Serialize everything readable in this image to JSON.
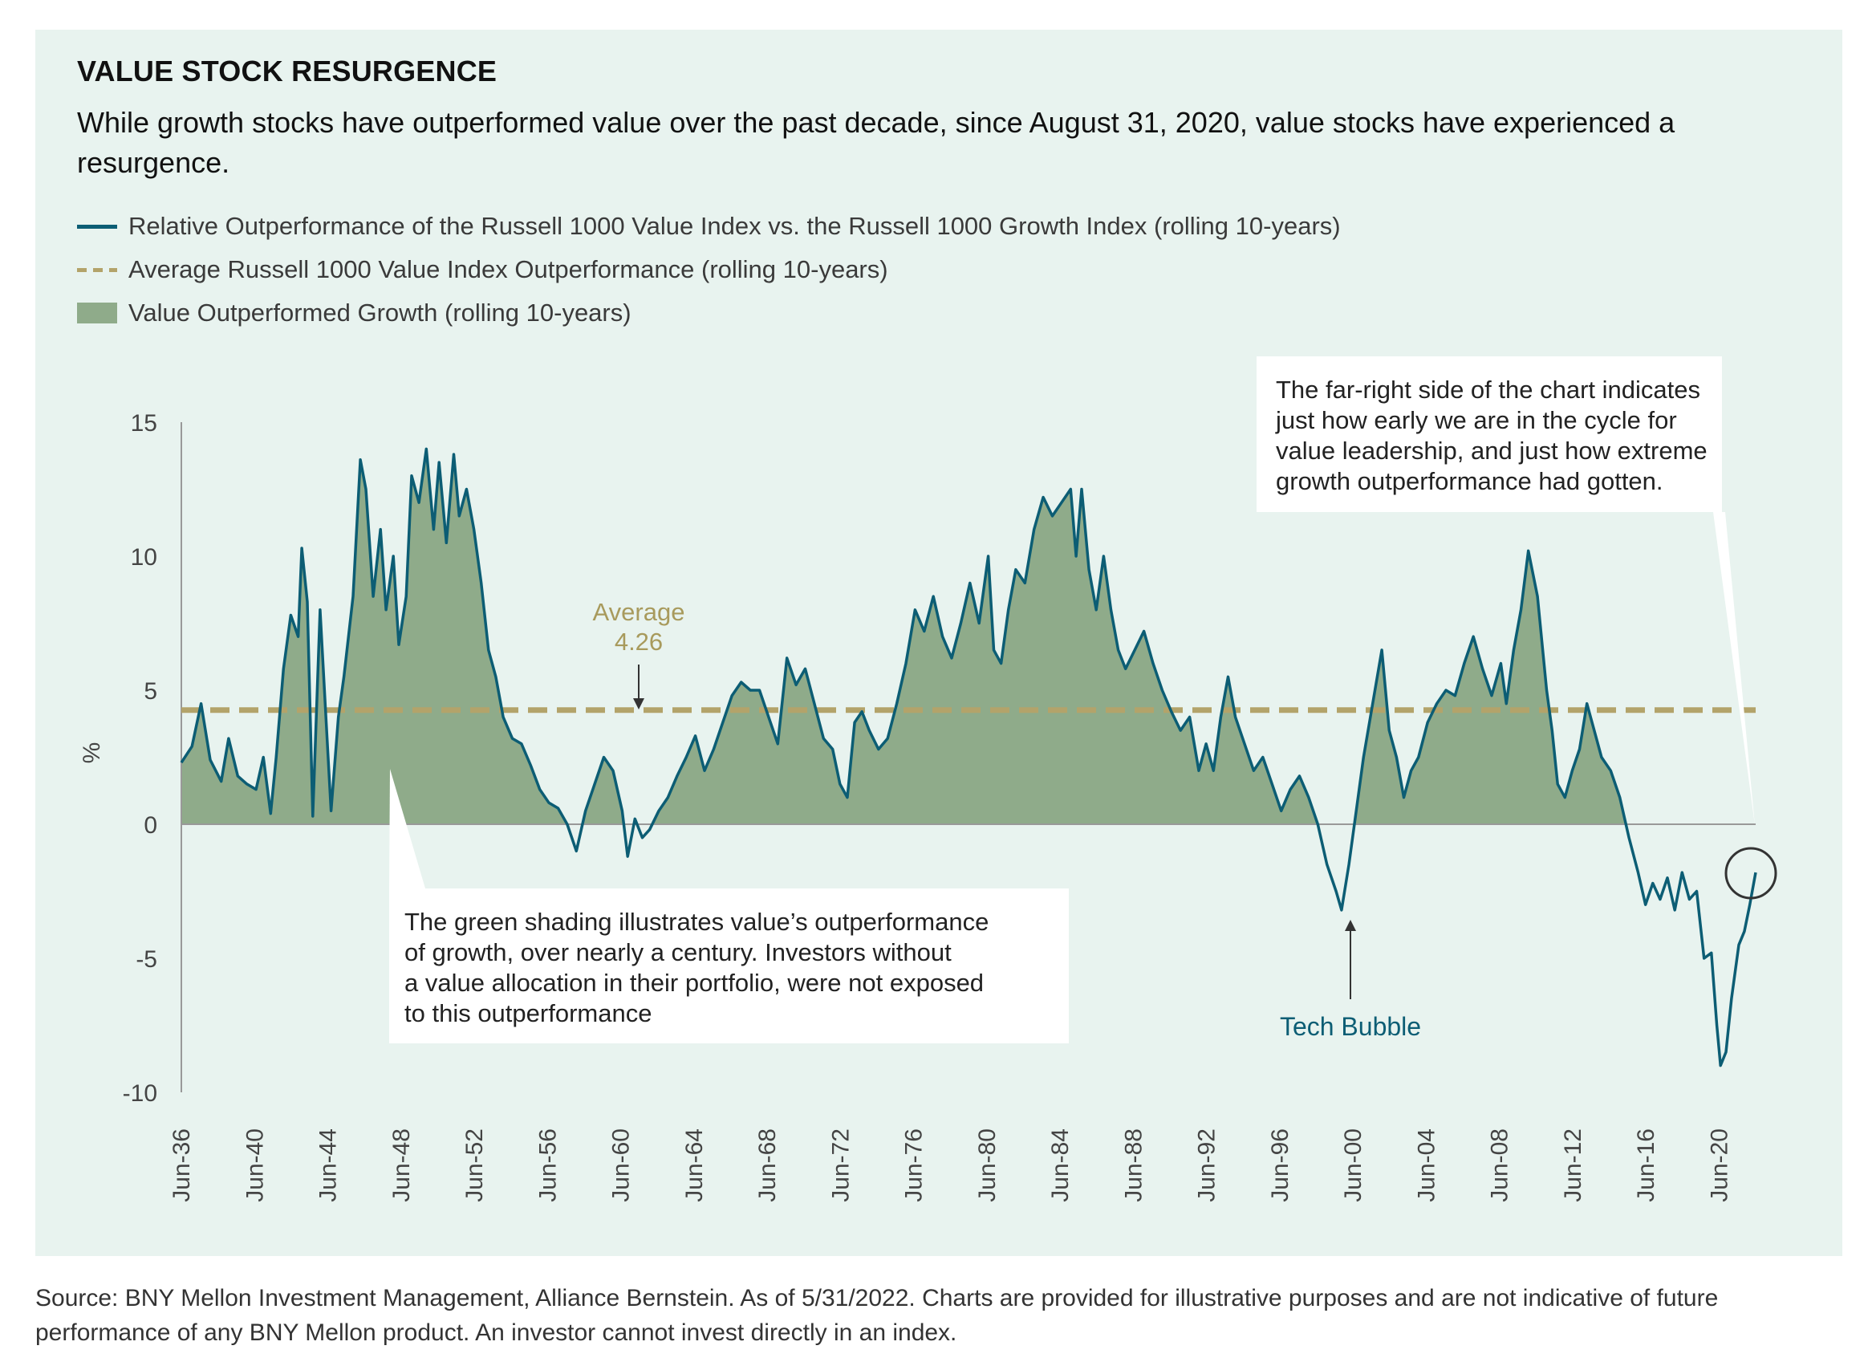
{
  "title": "VALUE STOCK RESURGENCE",
  "subtitle": "While growth stocks have outperformed value over the past decade, since August 31, 2020, value stocks have experienced a resurgence.",
  "legend": {
    "line": "Relative Outperformance of the Russell 1000 Value Index vs. the Russell 1000 Growth Index (rolling 10-years)",
    "dashed": "Average Russell 1000 Value Index Outperformance (rolling 10-years)",
    "area": "Value Outperformed Growth (rolling 10-years)"
  },
  "annotations": {
    "average_label": "Average",
    "average_value": "4.26",
    "top_right_box": [
      "The far-right side of the chart indicates",
      "just how early we are in the cycle for",
      "value leadership, and just how extreme",
      "growth outperformance had gotten."
    ],
    "bottom_box": [
      "The green shading illustrates value’s outperformance",
      "of growth, over nearly a century. Investors without",
      "a value allocation in their portfolio, were not exposed",
      "to this outperformance"
    ],
    "tech_bubble": "Tech Bubble"
  },
  "source": "Source: BNY Mellon Investment Management, Alliance Bernstein. As of 5/31/2022. Charts are provided for illustrative purposes and are not indicative of future performance of any BNY Mellon product. An investor cannot invest directly in an index.",
  "colors": {
    "panel": "#e8f3ef",
    "line": "#0c5d74",
    "area": "#8fab8a",
    "average": "#b3a36a",
    "axis": "#999999"
  },
  "chart_data": {
    "type": "line",
    "ylabel": "%",
    "ylim": [
      -10,
      15
    ],
    "yticks": [
      15,
      10,
      5,
      0,
      -5,
      -10
    ],
    "xlim": [
      1936.42,
      2022.42
    ],
    "xticks": [
      {
        "year": 1936.42,
        "label": "Jun-36"
      },
      {
        "year": 1940.42,
        "label": "Jun-40"
      },
      {
        "year": 1944.42,
        "label": "Jun-44"
      },
      {
        "year": 1948.42,
        "label": "Jun-48"
      },
      {
        "year": 1952.42,
        "label": "Jun-52"
      },
      {
        "year": 1956.42,
        "label": "Jun-56"
      },
      {
        "year": 1960.42,
        "label": "Jun-60"
      },
      {
        "year": 1964.42,
        "label": "Jun-64"
      },
      {
        "year": 1968.42,
        "label": "Jun-68"
      },
      {
        "year": 1972.42,
        "label": "Jun-72"
      },
      {
        "year": 1976.42,
        "label": "Jun-76"
      },
      {
        "year": 1980.42,
        "label": "Jun-80"
      },
      {
        "year": 1984.42,
        "label": "Jun-84"
      },
      {
        "year": 1988.42,
        "label": "Jun-88"
      },
      {
        "year": 1992.42,
        "label": "Jun-92"
      },
      {
        "year": 1996.42,
        "label": "Jun-96"
      },
      {
        "year": 2000.42,
        "label": "Jun-00"
      },
      {
        "year": 2004.42,
        "label": "Jun-04"
      },
      {
        "year": 2008.42,
        "label": "Jun-08"
      },
      {
        "year": 2012.42,
        "label": "Jun-12"
      },
      {
        "year": 2016.42,
        "label": "Jun-16"
      },
      {
        "year": 2020.42,
        "label": "Jun-20"
      }
    ],
    "average": 4.26,
    "series": [
      {
        "name": "Relative Outperformance of the Russell 1000 Value Index vs. the Russell 1000 Growth Index (rolling 10-years)",
        "points": [
          [
            1936.42,
            2.3
          ],
          [
            1937.0,
            2.9
          ],
          [
            1937.5,
            4.5
          ],
          [
            1938.0,
            2.4
          ],
          [
            1938.6,
            1.6
          ],
          [
            1939.0,
            3.2
          ],
          [
            1939.5,
            1.8
          ],
          [
            1940.0,
            1.5
          ],
          [
            1940.5,
            1.3
          ],
          [
            1940.9,
            2.5
          ],
          [
            1941.3,
            0.4
          ],
          [
            1941.6,
            2.5
          ],
          [
            1942.0,
            5.8
          ],
          [
            1942.4,
            7.8
          ],
          [
            1942.8,
            7.0
          ],
          [
            1943.0,
            10.3
          ],
          [
            1943.3,
            8.3
          ],
          [
            1943.6,
            0.3
          ],
          [
            1944.0,
            8.0
          ],
          [
            1944.3,
            4.2
          ],
          [
            1944.6,
            0.5
          ],
          [
            1945.0,
            4.0
          ],
          [
            1945.3,
            5.5
          ],
          [
            1945.8,
            8.5
          ],
          [
            1946.2,
            13.6
          ],
          [
            1946.5,
            12.5
          ],
          [
            1946.9,
            8.5
          ],
          [
            1947.3,
            11.0
          ],
          [
            1947.6,
            8.0
          ],
          [
            1948.0,
            10.0
          ],
          [
            1948.3,
            6.7
          ],
          [
            1948.7,
            8.5
          ],
          [
            1949.0,
            13.0
          ],
          [
            1949.4,
            12.0
          ],
          [
            1949.8,
            14.0
          ],
          [
            1950.2,
            11.0
          ],
          [
            1950.5,
            13.5
          ],
          [
            1950.9,
            10.5
          ],
          [
            1951.3,
            13.8
          ],
          [
            1951.6,
            11.5
          ],
          [
            1952.0,
            12.5
          ],
          [
            1952.4,
            11.0
          ],
          [
            1952.8,
            9.0
          ],
          [
            1953.2,
            6.5
          ],
          [
            1953.6,
            5.5
          ],
          [
            1954.0,
            4.0
          ],
          [
            1954.5,
            3.2
          ],
          [
            1955.0,
            3.0
          ],
          [
            1955.5,
            2.2
          ],
          [
            1956.0,
            1.3
          ],
          [
            1956.5,
            0.8
          ],
          [
            1957.0,
            0.6
          ],
          [
            1957.5,
            0.0
          ],
          [
            1958.0,
            -1.0
          ],
          [
            1958.5,
            0.5
          ],
          [
            1959.0,
            1.5
          ],
          [
            1959.5,
            2.5
          ],
          [
            1960.0,
            2.0
          ],
          [
            1960.5,
            0.5
          ],
          [
            1960.8,
            -1.2
          ],
          [
            1961.2,
            0.2
          ],
          [
            1961.6,
            -0.5
          ],
          [
            1962.0,
            -0.2
          ],
          [
            1962.5,
            0.5
          ],
          [
            1963.0,
            1.0
          ],
          [
            1963.5,
            1.8
          ],
          [
            1964.0,
            2.5
          ],
          [
            1964.5,
            3.3
          ],
          [
            1965.0,
            2.0
          ],
          [
            1965.5,
            2.8
          ],
          [
            1966.0,
            3.8
          ],
          [
            1966.5,
            4.8
          ],
          [
            1967.0,
            5.3
          ],
          [
            1967.5,
            5.0
          ],
          [
            1968.0,
            5.0
          ],
          [
            1968.5,
            4.0
          ],
          [
            1969.0,
            3.0
          ],
          [
            1969.5,
            6.2
          ],
          [
            1970.0,
            5.2
          ],
          [
            1970.5,
            5.8
          ],
          [
            1971.0,
            4.5
          ],
          [
            1971.5,
            3.2
          ],
          [
            1972.0,
            2.8
          ],
          [
            1972.4,
            1.5
          ],
          [
            1972.8,
            1.0
          ],
          [
            1973.2,
            3.8
          ],
          [
            1973.6,
            4.2
          ],
          [
            1974.0,
            3.5
          ],
          [
            1974.5,
            2.8
          ],
          [
            1975.0,
            3.2
          ],
          [
            1975.5,
            4.5
          ],
          [
            1976.0,
            6.0
          ],
          [
            1976.5,
            8.0
          ],
          [
            1977.0,
            7.2
          ],
          [
            1977.5,
            8.5
          ],
          [
            1978.0,
            7.0
          ],
          [
            1978.5,
            6.2
          ],
          [
            1979.0,
            7.5
          ],
          [
            1979.5,
            9.0
          ],
          [
            1980.0,
            7.5
          ],
          [
            1980.5,
            10.0
          ],
          [
            1980.8,
            6.5
          ],
          [
            1981.2,
            6.0
          ],
          [
            1981.6,
            8.0
          ],
          [
            1982.0,
            9.5
          ],
          [
            1982.5,
            9.0
          ],
          [
            1983.0,
            11.0
          ],
          [
            1983.5,
            12.2
          ],
          [
            1984.0,
            11.5
          ],
          [
            1984.5,
            12.0
          ],
          [
            1985.0,
            12.5
          ],
          [
            1985.3,
            10.0
          ],
          [
            1985.6,
            12.5
          ],
          [
            1986.0,
            9.5
          ],
          [
            1986.4,
            8.0
          ],
          [
            1986.8,
            10.0
          ],
          [
            1987.2,
            8.0
          ],
          [
            1987.6,
            6.5
          ],
          [
            1988.0,
            5.8
          ],
          [
            1988.5,
            6.5
          ],
          [
            1989.0,
            7.2
          ],
          [
            1989.5,
            6.0
          ],
          [
            1990.0,
            5.0
          ],
          [
            1990.5,
            4.2
          ],
          [
            1991.0,
            3.5
          ],
          [
            1991.5,
            4.0
          ],
          [
            1992.0,
            2.0
          ],
          [
            1992.4,
            3.0
          ],
          [
            1992.8,
            2.0
          ],
          [
            1993.2,
            4.0
          ],
          [
            1993.6,
            5.5
          ],
          [
            1994.0,
            4.0
          ],
          [
            1994.5,
            3.0
          ],
          [
            1995.0,
            2.0
          ],
          [
            1995.5,
            2.5
          ],
          [
            1996.0,
            1.5
          ],
          [
            1996.5,
            0.5
          ],
          [
            1997.0,
            1.3
          ],
          [
            1997.5,
            1.8
          ],
          [
            1998.0,
            1.0
          ],
          [
            1998.5,
            0.0
          ],
          [
            1999.0,
            -1.5
          ],
          [
            1999.5,
            -2.5
          ],
          [
            1999.8,
            -3.2
          ],
          [
            2000.2,
            -1.5
          ],
          [
            2000.6,
            0.5
          ],
          [
            2001.0,
            2.5
          ],
          [
            2001.5,
            4.5
          ],
          [
            2002.0,
            6.5
          ],
          [
            2002.4,
            3.5
          ],
          [
            2002.8,
            2.5
          ],
          [
            2003.2,
            1.0
          ],
          [
            2003.6,
            2.0
          ],
          [
            2004.0,
            2.5
          ],
          [
            2004.5,
            3.8
          ],
          [
            2005.0,
            4.5
          ],
          [
            2005.5,
            5.0
          ],
          [
            2006.0,
            4.8
          ],
          [
            2006.5,
            6.0
          ],
          [
            2007.0,
            7.0
          ],
          [
            2007.5,
            5.8
          ],
          [
            2008.0,
            4.8
          ],
          [
            2008.5,
            6.0
          ],
          [
            2008.8,
            4.5
          ],
          [
            2009.2,
            6.5
          ],
          [
            2009.6,
            8.0
          ],
          [
            2010.0,
            10.2
          ],
          [
            2010.5,
            8.5
          ],
          [
            2011.0,
            5.0
          ],
          [
            2011.3,
            3.5
          ],
          [
            2011.6,
            1.5
          ],
          [
            2012.0,
            1.0
          ],
          [
            2012.4,
            2.0
          ],
          [
            2012.8,
            2.8
          ],
          [
            2013.2,
            4.5
          ],
          [
            2013.6,
            3.5
          ],
          [
            2014.0,
            2.5
          ],
          [
            2014.5,
            2.0
          ],
          [
            2015.0,
            1.0
          ],
          [
            2015.5,
            -0.5
          ],
          [
            2016.0,
            -1.8
          ],
          [
            2016.4,
            -3.0
          ],
          [
            2016.8,
            -2.2
          ],
          [
            2017.2,
            -2.8
          ],
          [
            2017.6,
            -2.0
          ],
          [
            2018.0,
            -3.2
          ],
          [
            2018.4,
            -1.8
          ],
          [
            2018.8,
            -2.8
          ],
          [
            2019.2,
            -2.5
          ],
          [
            2019.6,
            -5.0
          ],
          [
            2020.0,
            -4.8
          ],
          [
            2020.3,
            -7.5
          ],
          [
            2020.5,
            -9.0
          ],
          [
            2020.8,
            -8.5
          ],
          [
            2021.1,
            -6.5
          ],
          [
            2021.5,
            -4.5
          ],
          [
            2021.8,
            -4.0
          ],
          [
            2022.1,
            -3.0
          ],
          [
            2022.42,
            -1.8
          ]
        ]
      }
    ]
  }
}
